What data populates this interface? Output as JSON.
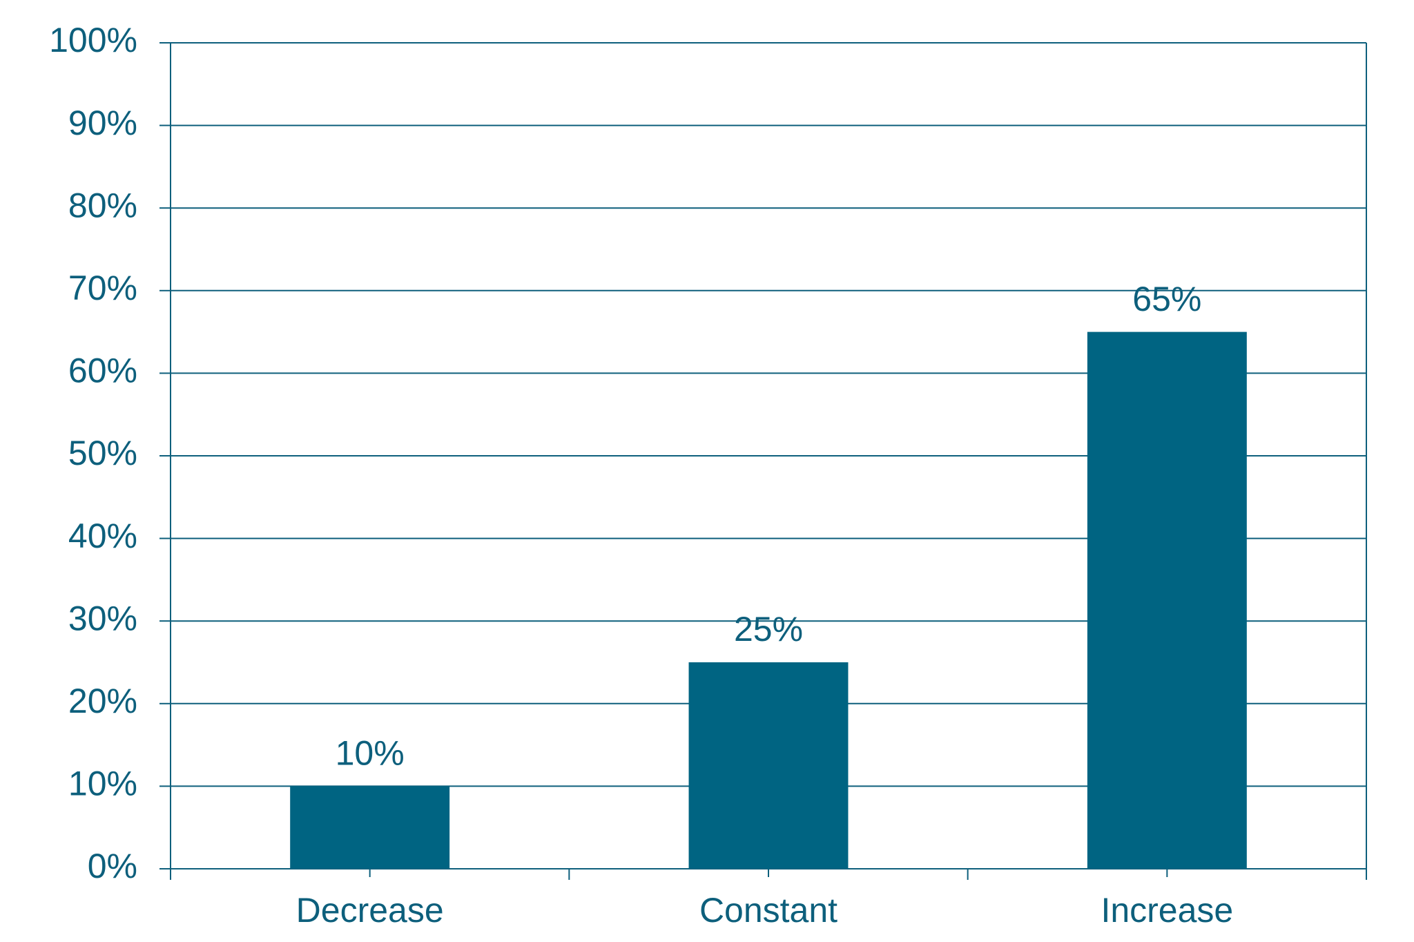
{
  "chart_data": {
    "type": "bar",
    "categories": [
      "Decrease",
      "Constant",
      "Increase"
    ],
    "values": [
      10,
      25,
      65
    ],
    "value_labels": [
      "10%",
      "25%",
      "65%"
    ],
    "color": "#006482",
    "ylim": [
      0,
      100
    ],
    "yticks": [
      {
        "value": 0,
        "label": "0%"
      },
      {
        "value": 10,
        "label": "10%"
      },
      {
        "value": 20,
        "label": "20%"
      },
      {
        "value": 30,
        "label": "30%"
      },
      {
        "value": 40,
        "label": "40%"
      },
      {
        "value": 50,
        "label": "50%"
      },
      {
        "value": 60,
        "label": "60%"
      },
      {
        "value": 70,
        "label": "70%"
      },
      {
        "value": 80,
        "label": "80%"
      },
      {
        "value": 90,
        "label": "90%"
      },
      {
        "value": 100,
        "label": "100%"
      }
    ],
    "grid": true
  }
}
